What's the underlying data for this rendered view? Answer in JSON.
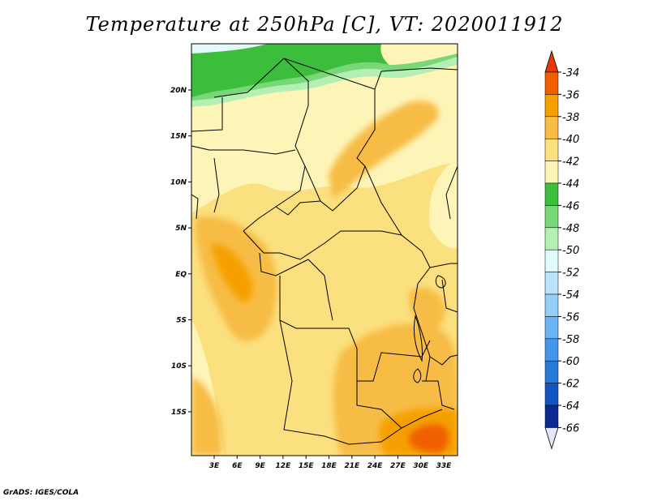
{
  "title": "Temperature at 250hPa [C], VT: 2020011912",
  "credit": "GrADS: IGES/COLA",
  "lat_labels": [
    "20N",
    "15N",
    "10N",
    "5N",
    "EQ",
    "5S",
    "10S",
    "15S"
  ],
  "lon_labels": [
    "3E",
    "6E",
    "9E",
    "12E",
    "15E",
    "18E",
    "21E",
    "24E",
    "27E",
    "30E",
    "33E"
  ],
  "colorbar": [
    {
      "label": "-34",
      "color": "#e83800"
    },
    {
      "label": "-36",
      "color": "#f06000"
    },
    {
      "label": "-38",
      "color": "#f5a000"
    },
    {
      "label": "-40",
      "color": "#f7bc45"
    },
    {
      "label": "-42",
      "color": "#fbe07f"
    },
    {
      "label": "-44",
      "color": "#fdf5b8"
    },
    {
      "label": "-46",
      "color": "#3cbd3c"
    },
    {
      "label": "-48",
      "color": "#78d878"
    },
    {
      "label": "-50",
      "color": "#b4f0b4"
    },
    {
      "label": "-52",
      "color": "#e0fbfa"
    },
    {
      "label": "-54",
      "color": "#b9e4fb"
    },
    {
      "label": "-56",
      "color": "#94cdf6"
    },
    {
      "label": "-58",
      "color": "#6bb3f0"
    },
    {
      "label": "-60",
      "color": "#4496e8"
    },
    {
      "label": "-62",
      "color": "#2878d8"
    },
    {
      "label": "-64",
      "color": "#1455c0"
    },
    {
      "label": "-66",
      "color": "#0a2a90"
    }
  ],
  "colorbar_extremes": {
    "high": "#e83800",
    "low": "#e4e4fa"
  }
}
